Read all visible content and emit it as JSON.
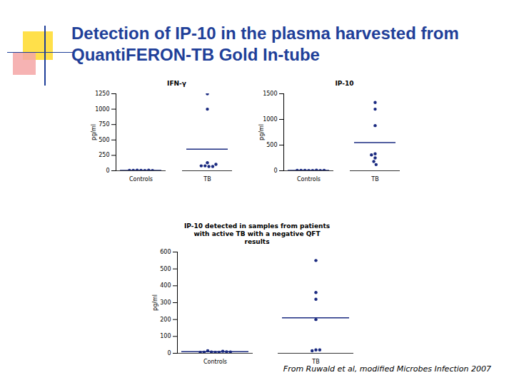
{
  "title": "Detection of IP-10 in the plasma harvested from Quanti​FERON-TB Gold In-tube",
  "source": "From Ruwald et al, modified Microbes Infection 2007",
  "chart_data": [
    {
      "type": "scatter",
      "title": "IFN-γ",
      "y_label": "pg/ml",
      "color": "#1a2a80",
      "categories": [
        "Controls",
        "TB"
      ],
      "values": [
        [
          5,
          8,
          3,
          10,
          6,
          4,
          7
        ],
        [
          1250,
          1000,
          130,
          80,
          70,
          70,
          80,
          105
        ]
      ],
      "means": [
        6,
        350
      ],
      "ylim": [
        0,
        1250
      ],
      "yticks": [
        0,
        250,
        500,
        750,
        1000,
        1250
      ]
    },
    {
      "type": "scatter",
      "title": "IP-10",
      "y_label": "pg/ml",
      "color": "#1a2a80",
      "categories": [
        "Controls",
        "TB"
      ],
      "values": [
        [
          5,
          8,
          3,
          10,
          6,
          4,
          7,
          9
        ],
        [
          1330,
          1200,
          880,
          330,
          310,
          250,
          180,
          120
        ]
      ],
      "means": [
        7,
        550
      ],
      "ylim": [
        0,
        1500
      ],
      "yticks": [
        0,
        500,
        1000,
        1500
      ]
    },
    {
      "type": "scatter",
      "title": "IP-10 detected in samples from patients with active TB with a negative QFT results",
      "y_label": "pg/ml",
      "color": "#1a2a80",
      "categories": [
        "Controls",
        "TB"
      ],
      "values": [
        [
          6,
          8,
          5,
          12,
          15,
          7,
          9,
          6,
          8
        ],
        [
          550,
          360,
          320,
          200,
          20,
          15,
          20
        ]
      ],
      "means": [
        9,
        210
      ],
      "ylim": [
        0,
        600
      ],
      "yticks": [
        0,
        100,
        200,
        300,
        400,
        500,
        600
      ]
    }
  ]
}
